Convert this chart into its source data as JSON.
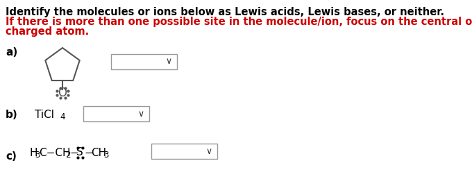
{
  "title_line1": "Identify the molecules or ions below as Lewis acids, Lewis bases, or neither.",
  "title_line2": "If there is more than one possible site in the molecule/ion, focus on the central or the",
  "title_line3": "charged atom.",
  "title_color": "#000000",
  "subtitle_color": "#cc0000",
  "background": "#ffffff",
  "dropdown_border": "#999999",
  "molecule_color": "#555555",
  "text_fontsize": 10.5,
  "label_fontsize": 11,
  "chem_fontsize": 11
}
